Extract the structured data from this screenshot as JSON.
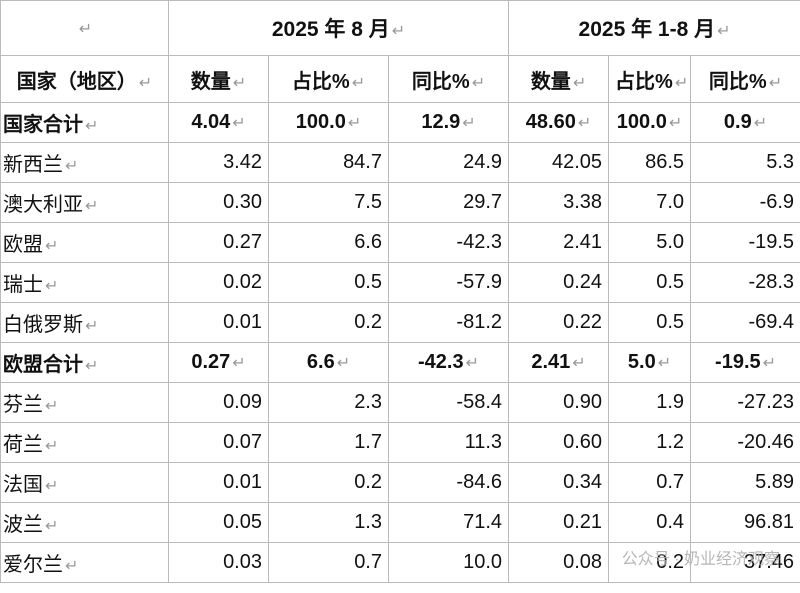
{
  "paragraph_mark": "↵",
  "table": {
    "header_top": [
      "",
      "2025 年 8 月",
      "2025 年 1-8 月"
    ],
    "header": [
      "国家（地区）",
      "数量",
      "占比%",
      "同比%",
      "数量",
      "占比%",
      "同比%"
    ],
    "rows": [
      {
        "bold": true,
        "cells": [
          "国家合计",
          "4.04",
          "100.0",
          "12.9",
          "48.60",
          "100.0",
          "0.9"
        ]
      },
      {
        "bold": false,
        "cells": [
          "新西兰",
          "3.42",
          "84.7",
          "24.9",
          "42.05",
          "86.5",
          "5.3"
        ]
      },
      {
        "bold": false,
        "cells": [
          "澳大利亚",
          "0.30",
          "7.5",
          "29.7",
          "3.38",
          "7.0",
          "-6.9"
        ]
      },
      {
        "bold": false,
        "cells": [
          "欧盟",
          "0.27",
          "6.6",
          "-42.3",
          "2.41",
          "5.0",
          "-19.5"
        ]
      },
      {
        "bold": false,
        "cells": [
          "瑞士",
          "0.02",
          "0.5",
          "-57.9",
          "0.24",
          "0.5",
          "-28.3"
        ]
      },
      {
        "bold": false,
        "cells": [
          "白俄罗斯",
          "0.01",
          "0.2",
          "-81.2",
          "0.22",
          "0.5",
          "-69.4"
        ]
      },
      {
        "bold": true,
        "cells": [
          "欧盟合计",
          "0.27",
          "6.6",
          "-42.3",
          "2.41",
          "5.0",
          "-19.5"
        ]
      },
      {
        "bold": false,
        "cells": [
          "芬兰",
          "0.09",
          "2.3",
          "-58.4",
          "0.90",
          "1.9",
          "-27.23"
        ]
      },
      {
        "bold": false,
        "cells": [
          "荷兰",
          "0.07",
          "1.7",
          "11.3",
          "0.60",
          "1.2",
          "-20.46"
        ]
      },
      {
        "bold": false,
        "cells": [
          "法国",
          "0.01",
          "0.2",
          "-84.6",
          "0.34",
          "0.7",
          "5.89"
        ]
      },
      {
        "bold": false,
        "cells": [
          "波兰",
          "0.05",
          "1.3",
          "71.4",
          "0.21",
          "0.4",
          "96.81"
        ]
      },
      {
        "bold": false,
        "cells": [
          "爱尔兰",
          "0.03",
          "0.7",
          "10.0",
          "0.08",
          "0.2",
          "37.46"
        ]
      }
    ]
  },
  "watermark": "公众号 · 奶业经济观察"
}
